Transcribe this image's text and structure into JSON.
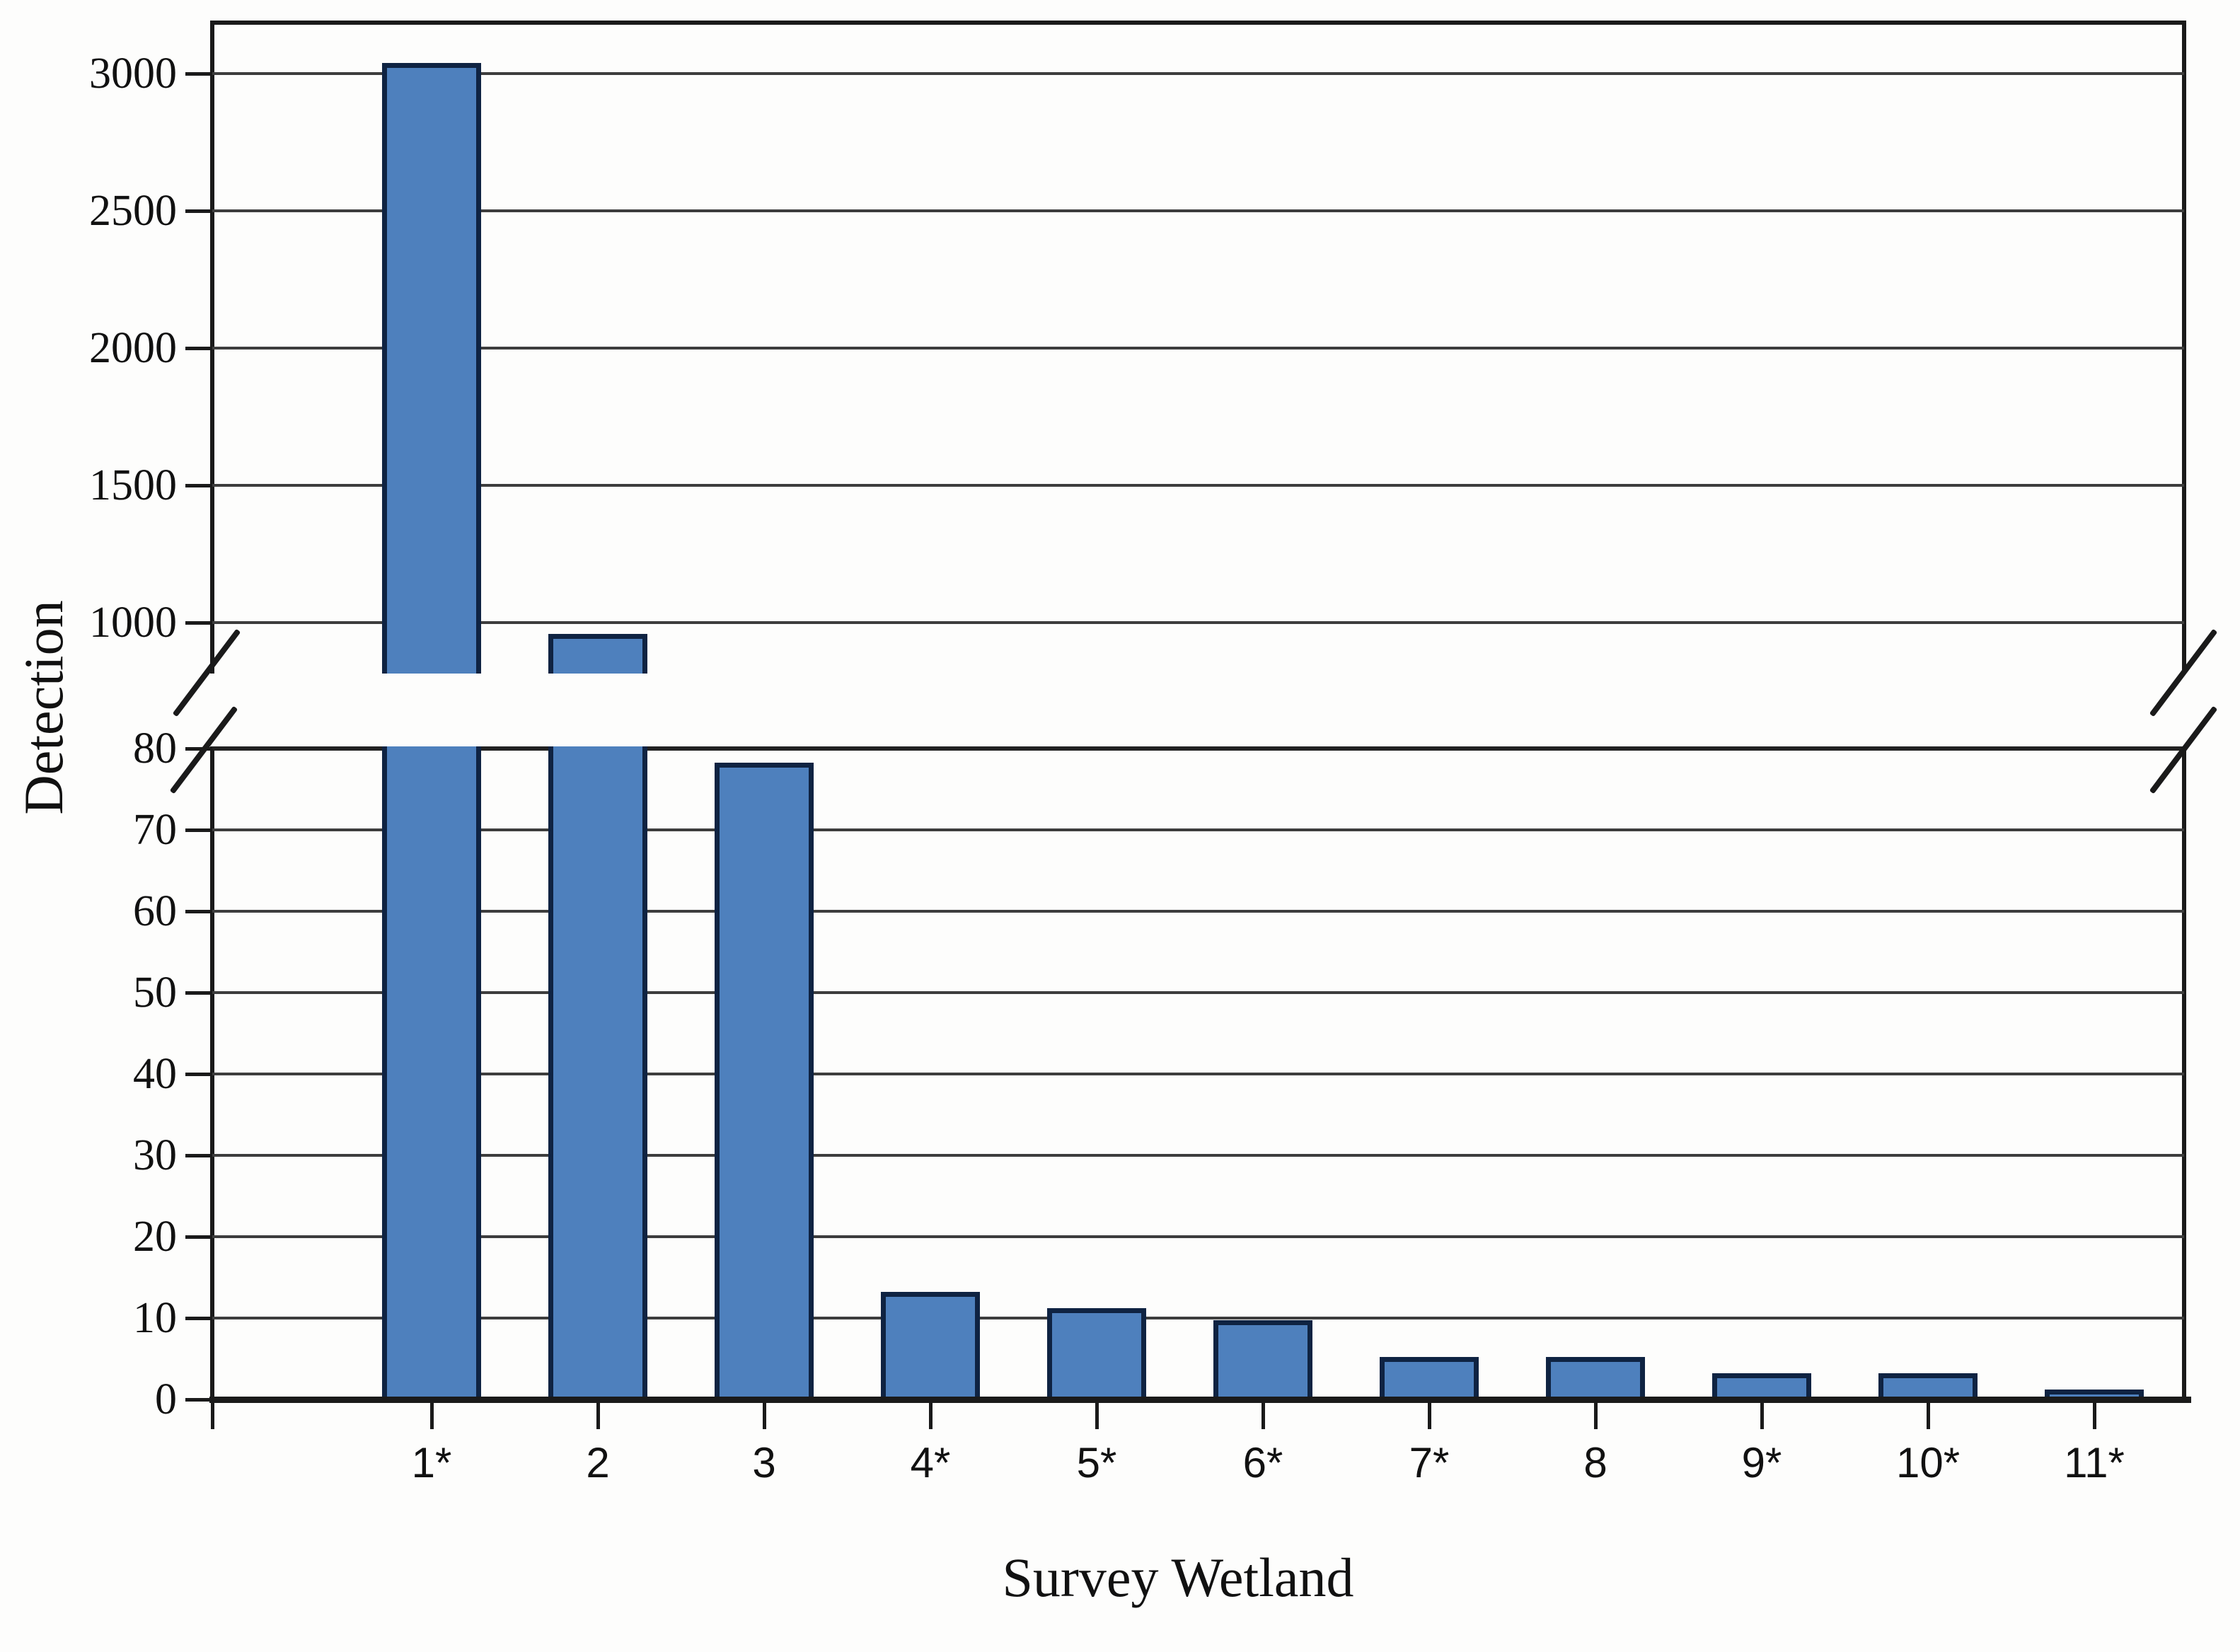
{
  "chart_data": {
    "type": "bar",
    "title": "",
    "xlabel": "Survey Wetland",
    "ylabel": "Detection",
    "categories": [
      "1*",
      "2",
      "3",
      "4*",
      "5*",
      "6*",
      "7*",
      "8",
      "9*",
      "10*",
      "11*"
    ],
    "values": [
      3030,
      950,
      78,
      13,
      11,
      9.5,
      5,
      5,
      3,
      3,
      1
    ],
    "series": [
      {
        "name": "Detection",
        "values": [
          3030,
          950,
          78,
          13,
          11,
          9.5,
          5,
          5,
          3,
          3,
          1
        ]
      }
    ],
    "broken_axis": {
      "enabled": true,
      "lower_range": [
        0,
        80
      ],
      "lower_ticks": [
        0,
        10,
        20,
        30,
        40,
        50,
        60,
        70,
        80
      ],
      "upper_range": [
        800,
        3150
      ],
      "upper_ticks": [
        1000,
        1500,
        2000,
        2500,
        3000
      ]
    },
    "grid": true,
    "legend": false,
    "colors": {
      "bar_fill": "#4E80BD",
      "bar_border": "#0F2342",
      "axis": "#1a1a1a",
      "gridline": "#3d3d3d",
      "text": "#111111",
      "background": "#fdfdfc"
    }
  }
}
